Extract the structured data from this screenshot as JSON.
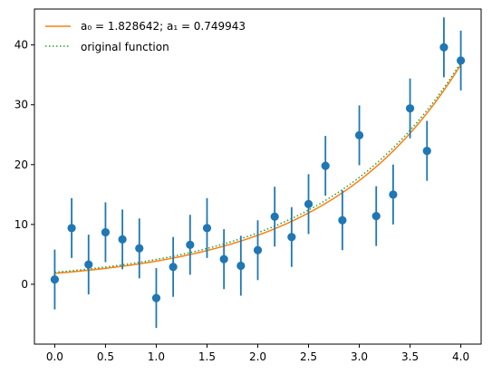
{
  "chart_data": {
    "type": "scatter",
    "title": "",
    "xlabel": "",
    "ylabel": "",
    "xlim": [
      -0.2,
      4.2
    ],
    "ylim": [
      -10,
      46
    ],
    "xticks": [
      0.0,
      0.5,
      1.0,
      1.5,
      2.0,
      2.5,
      3.0,
      3.5,
      4.0
    ],
    "xtick_labels": [
      "0.0",
      "0.5",
      "1.0",
      "1.5",
      "2.0",
      "2.5",
      "3.0",
      "3.5",
      "4.0"
    ],
    "yticks": [
      0,
      10,
      20,
      30,
      40
    ],
    "ytick_labels": [
      "0",
      "10",
      "20",
      "30",
      "40"
    ],
    "grid": false,
    "legend_position": "upper-left",
    "colors": {
      "data": "#1f77b4",
      "fit": "#ff7f0e",
      "original": "#2ca02c",
      "axes": "#000000"
    },
    "fit": {
      "label_text": "a₀ =  1.828642; a₁ =  0.749943",
      "a0": 1.828642,
      "a1": 0.749943
    },
    "original": {
      "label": "original function",
      "a0": 2.0,
      "a1": 0.73
    },
    "points": {
      "x": [
        0.0,
        0.1667,
        0.3333,
        0.5,
        0.6667,
        0.8333,
        1.0,
        1.1667,
        1.3333,
        1.5,
        1.6667,
        1.8333,
        2.0,
        2.1667,
        2.3333,
        2.5,
        2.6667,
        2.8333,
        3.0,
        3.1667,
        3.3333,
        3.5,
        3.6667,
        3.8333,
        4.0
      ],
      "y": [
        0.8,
        9.4,
        3.3,
        8.7,
        7.5,
        6.0,
        -2.3,
        2.9,
        6.6,
        9.4,
        4.2,
        3.1,
        5.7,
        11.3,
        7.9,
        13.4,
        19.8,
        10.7,
        24.9,
        11.4,
        15.0,
        29.4,
        22.3,
        39.6,
        37.4
      ],
      "error": 5.0
    }
  }
}
